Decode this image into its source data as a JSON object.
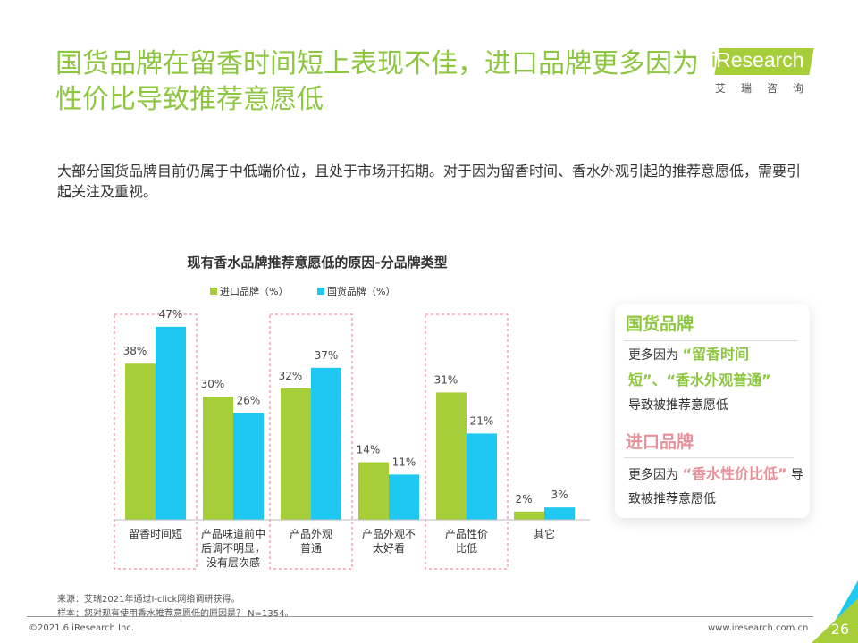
{
  "header": {
    "title": "国货品牌在留香时间短上表现不佳，进口品牌更多因为性价比导致推荐意愿低",
    "logo_text": "iResearch",
    "logo_cn": "艾瑞咨询"
  },
  "description": "大部分国货品牌目前仍属于中低端价位，且处于市场开拓期。对于因为留香时间、香水外观引起的推荐意愿低，需要引起关注及重视。",
  "chart_data": {
    "type": "bar",
    "title": "现有香水品牌推荐意愿低的原因-分品牌类型",
    "categories": [
      "留香时间短",
      "产品味道前中后调不明显，没有层次感",
      "产品外观普通",
      "产品外观不太好看",
      "产品性价比低",
      "其它"
    ],
    "category_lines": [
      [
        "留香时间短"
      ],
      [
        "产品味道前中",
        "后调不明显，",
        "没有层次感"
      ],
      [
        "产品外观",
        "普通"
      ],
      [
        "产品外观不",
        "太好看"
      ],
      [
        "产品性价",
        "比低"
      ],
      [
        "其它"
      ]
    ],
    "series": [
      {
        "name": "进口品牌（%）",
        "color": "#a6ce39",
        "values": [
          38,
          30,
          32,
          14,
          31,
          2
        ]
      },
      {
        "name": "国货品牌（%）",
        "color": "#1ec8f0",
        "values": [
          47,
          26,
          37,
          11,
          21,
          3
        ]
      }
    ],
    "highlighted": [
      0,
      2,
      4
    ],
    "ylim": [
      0,
      50
    ],
    "legend": "top",
    "unit": "%"
  },
  "card": {
    "domestic_title": "国货品牌",
    "domestic_pre": "更多因为",
    "domestic_hl": "“留香时间短”、“香水外观普通”",
    "domestic_post": "导致被推荐意愿低",
    "import_title": "进口品牌",
    "import_pre": "更多因为",
    "import_hl": "“香水性价比低”",
    "import_post": "导致被推荐意愿低"
  },
  "footer": {
    "source": "来源：艾瑞2021年通过I-click网络调研获得。",
    "sample": "样本：您对现有使用香水推荐意愿低的原因是？ N=1354。",
    "copyright": "©2021.6 iResearch Inc.",
    "url": "www.iresearch.com.cn",
    "page": "26"
  }
}
